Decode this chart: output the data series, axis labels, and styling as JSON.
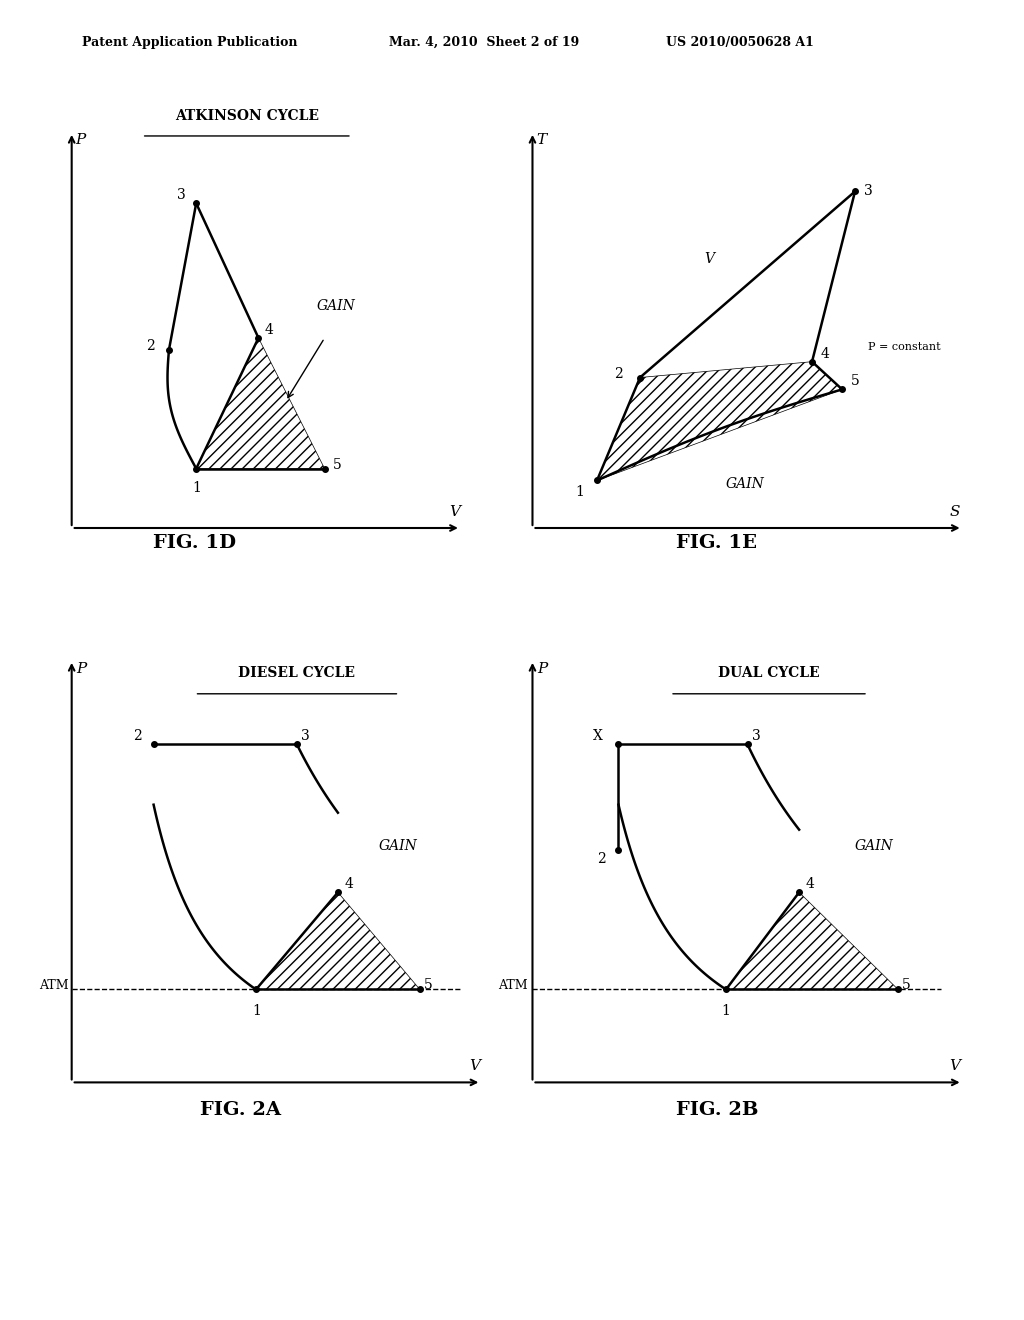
{
  "bg_color": "#ffffff",
  "header_left": "Patent Application Publication",
  "header_mid": "Mar. 4, 2010  Sheet 2 of 19",
  "header_right": "US 2010/0050628 A1",
  "fig1d_title": "ATKINSON CYCLE",
  "fig1d_xlabel": "V",
  "fig1d_ylabel": "P",
  "fig1d_figname": "FIG. 1D",
  "fig1e_title": "",
  "fig1e_xlabel": "S",
  "fig1e_ylabel": "T",
  "fig1e_figname": "FIG. 1E",
  "fig2a_title": "DIESEL CYCLE",
  "fig2a_xlabel": "V",
  "fig2a_ylabel": "P",
  "fig2a_figname": "FIG. 2A",
  "fig2b_title": "DUAL CYCLE",
  "fig2b_xlabel": "V",
  "fig2b_ylabel": "P",
  "fig2b_figname": "FIG. 2B"
}
